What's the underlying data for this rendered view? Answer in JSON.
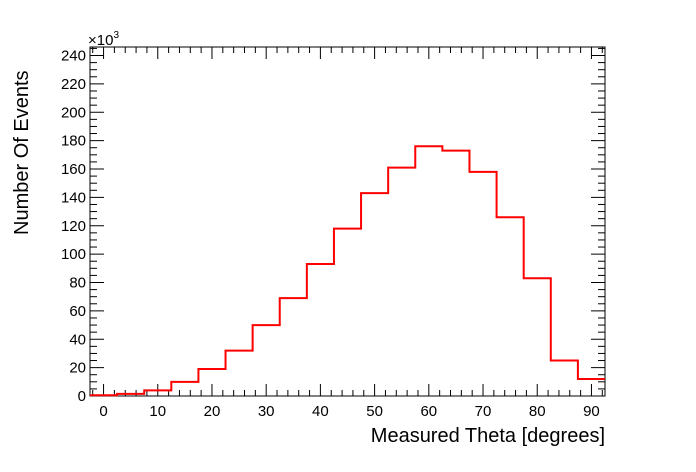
{
  "chart_data": {
    "type": "histogram",
    "title": "",
    "xlabel": "Measured Theta [degrees]",
    "ylabel": "Number Of Events",
    "y_multiplier_label": "×10",
    "y_multiplier_exponent": "3",
    "xlim": [
      -2.5,
      92.5
    ],
    "ylim": [
      0,
      246
    ],
    "x_ticks": [
      0,
      10,
      20,
      30,
      40,
      50,
      60,
      70,
      80,
      90
    ],
    "y_ticks": [
      0,
      20,
      40,
      60,
      80,
      100,
      120,
      140,
      160,
      180,
      200,
      220,
      240
    ],
    "bin_edges": [
      -2.5,
      2.5,
      7.5,
      12.5,
      17.5,
      22.5,
      27.5,
      32.5,
      37.5,
      42.5,
      47.5,
      52.5,
      57.5,
      62.5,
      67.5,
      72.5,
      77.5,
      82.5,
      87.5,
      92.5
    ],
    "series": [
      {
        "values": [
          0.5,
          1.5,
          4,
          10,
          19,
          32,
          50,
          69,
          93,
          118,
          143,
          161,
          176,
          173,
          158,
          126,
          83,
          25,
          12
        ],
        "color": "#ff0000"
      }
    ],
    "grid": false,
    "legend": "none"
  }
}
